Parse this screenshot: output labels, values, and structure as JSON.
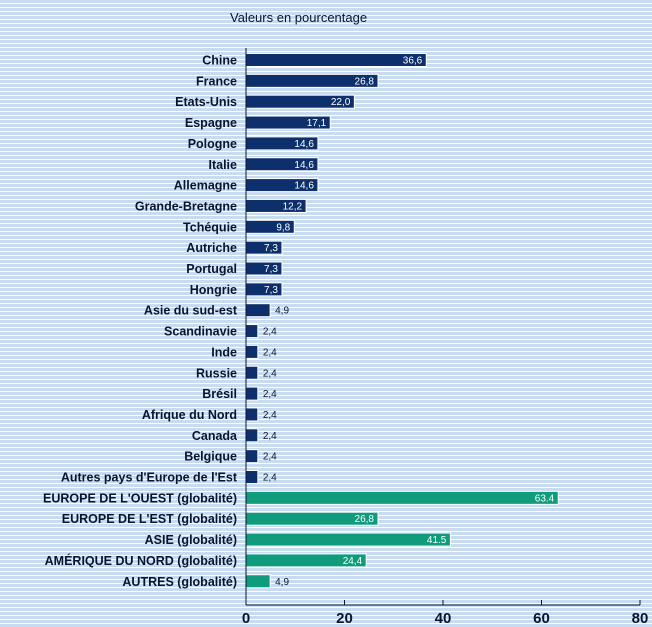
{
  "chart_data": {
    "type": "bar",
    "orientation": "horizontal",
    "subtitle": "Valeurs en pourcentage",
    "categories": [
      "Chine",
      "France",
      "Etats-Unis",
      "Espagne",
      "Pologne",
      "Italie",
      "Allemagne",
      "Grande-Bretagne",
      "Tchéquie",
      "Autriche",
      "Portugal",
      "Hongrie",
      "Asie du sud-est",
      "Scandinavie",
      "Inde",
      "Russie",
      "Brésil",
      "Afrique du Nord",
      "Canada",
      "Belgique",
      "Autres pays d'Europe de l'Est",
      "EUROPE DE L'OUEST (globalité)",
      "EUROPE DE L'EST (globalité)",
      "ASIE (globalité)",
      "AMÉRIQUE DU NORD (globalité)",
      "AUTRES (globalité)"
    ],
    "values": [
      36.6,
      26.8,
      22.0,
      17.1,
      14.6,
      14.6,
      14.6,
      12.2,
      9.8,
      7.3,
      7.3,
      7.3,
      4.9,
      2.4,
      2.4,
      2.4,
      2.4,
      2.4,
      2.4,
      2.4,
      2.4,
      63.4,
      26.8,
      41.5,
      24.4,
      4.9
    ],
    "value_labels": [
      "36,6",
      "26,8",
      "22,0",
      "17,1",
      "14,6",
      "14,6",
      "14,6",
      "12,2",
      "9,8",
      "7,3",
      "7,3",
      "7,3",
      "4,9",
      "2,4",
      "2,4",
      "2,4",
      "2,4",
      "2,4",
      "2,4",
      "2,4",
      "2,4",
      "63.4",
      "26,8",
      "41.5",
      "24,4",
      "4,9"
    ],
    "groups": [
      "country",
      "country",
      "country",
      "country",
      "country",
      "country",
      "country",
      "country",
      "country",
      "country",
      "country",
      "country",
      "country",
      "country",
      "country",
      "country",
      "country",
      "country",
      "country",
      "country",
      "country",
      "region",
      "region",
      "region",
      "region",
      "region"
    ],
    "colors": {
      "country": "#0d2f6b",
      "region": "#0f9b7c",
      "axis": "#0a1430",
      "label_text": "#0a1430"
    },
    "xlim": [
      0,
      80
    ],
    "xticks": [
      0,
      20,
      40,
      60,
      80
    ],
    "xlabel": "",
    "ylabel": "",
    "grid": false,
    "legend": "none"
  }
}
